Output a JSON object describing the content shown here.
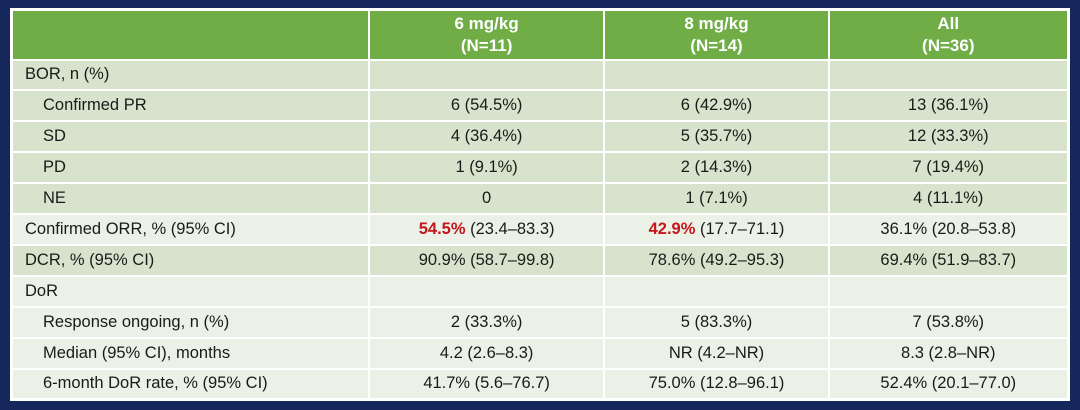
{
  "colors": {
    "background_navy": "#16275c",
    "header_green": "#70ad47",
    "row_dark": "#d7e3cc",
    "row_light": "#ecf1e7",
    "gridline": "#ffffff",
    "header_text": "#ffffff",
    "body_text": "#1a1a1a",
    "highlight_red": "#c4161c"
  },
  "table": {
    "columns": [
      {
        "label": "",
        "sub": ""
      },
      {
        "label": "6 mg/kg",
        "sub": "(N=11)"
      },
      {
        "label": "8 mg/kg",
        "sub": "(N=14)"
      },
      {
        "label": "All",
        "sub": "(N=36)"
      }
    ],
    "rows": [
      {
        "label": "BOR, n (%)",
        "indent": false,
        "shade": "dark",
        "values": [
          "",
          "",
          ""
        ]
      },
      {
        "label": "Confirmed PR",
        "indent": true,
        "shade": "dark",
        "values": [
          "6 (54.5%)",
          "6 (42.9%)",
          "13 (36.1%)"
        ]
      },
      {
        "label": "SD",
        "indent": true,
        "shade": "dark",
        "values": [
          "4 (36.4%)",
          "5 (35.7%)",
          "12 (33.3%)"
        ]
      },
      {
        "label": "PD",
        "indent": true,
        "shade": "dark",
        "values": [
          "1 (9.1%)",
          "2 (14.3%)",
          "7 (19.4%)"
        ]
      },
      {
        "label": "NE",
        "indent": true,
        "shade": "dark",
        "values": [
          "0",
          "1 (7.1%)",
          "4 (11.1%)"
        ]
      },
      {
        "label": "Confirmed ORR, % (95% CI)",
        "indent": false,
        "shade": "light",
        "values": [
          {
            "highlight": "54.5%",
            "rest": " (23.4–83.3)"
          },
          {
            "highlight": "42.9%",
            "rest": " (17.7–71.1)"
          },
          "36.1% (20.8–53.8)"
        ]
      },
      {
        "label": "DCR, % (95% CI)",
        "indent": false,
        "shade": "dark",
        "values": [
          "90.9% (58.7–99.8)",
          "78.6% (49.2–95.3)",
          "69.4% (51.9–83.7)"
        ]
      },
      {
        "label": "DoR",
        "indent": false,
        "shade": "light",
        "values": [
          "",
          "",
          ""
        ]
      },
      {
        "label": "Response ongoing, n (%)",
        "indent": true,
        "shade": "light",
        "values": [
          "2 (33.3%)",
          "5 (83.3%)",
          "7 (53.8%)"
        ]
      },
      {
        "label": "Median (95% CI), months",
        "indent": true,
        "shade": "light",
        "values": [
          "4.2 (2.6–8.3)",
          "NR (4.2–NR)",
          "8.3 (2.8–NR)"
        ]
      },
      {
        "label": "6-month DoR rate, % (95% CI)",
        "indent": true,
        "shade": "light",
        "values": [
          "41.7% (5.6–76.7)",
          "75.0% (12.8–96.1)",
          "52.4% (20.1–77.0)"
        ]
      }
    ]
  }
}
